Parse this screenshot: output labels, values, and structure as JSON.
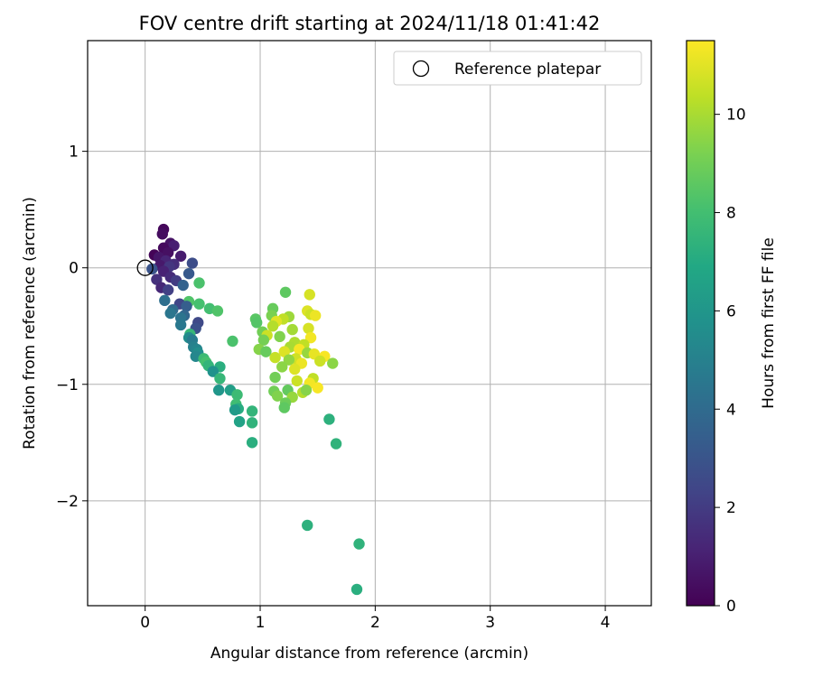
{
  "chart_data": {
    "type": "scatter",
    "title": "FOV centre drift starting at 2024/11/18 01:41:42",
    "xlabel": "Angular distance from reference (arcmin)",
    "ylabel": "Rotation from reference (arcmin)",
    "xlim": [
      -0.5,
      4.4
    ],
    "ylim": [
      -2.9,
      1.95
    ],
    "xticks": [
      0,
      1,
      2,
      3,
      4
    ],
    "xtick_labels": [
      "0",
      "1",
      "2",
      "3",
      "4"
    ],
    "yticks": [
      1,
      0,
      -1,
      -2
    ],
    "ytick_labels": [
      "1",
      "0",
      "−1",
      "−2"
    ],
    "grid": true,
    "legend": {
      "position": "top-right",
      "entries": [
        "Reference platepar"
      ]
    },
    "reference_point": {
      "x": 0,
      "y": 0,
      "label": "Reference platepar"
    },
    "colorbar": {
      "label": "Hours from first FF file",
      "colormap": "viridis",
      "range": [
        0,
        11.5
      ],
      "ticks": [
        0,
        2,
        4,
        6,
        8,
        10
      ],
      "tick_labels": [
        "0",
        "2",
        "4",
        "6",
        "8",
        "10"
      ]
    },
    "points": [
      {
        "x": 0.16,
        "y": 0.33,
        "t": 0.2
      },
      {
        "x": 0.15,
        "y": 0.29,
        "t": 0.4
      },
      {
        "x": 0.22,
        "y": 0.21,
        "t": 0.6
      },
      {
        "x": 0.25,
        "y": 0.19,
        "t": 1.0
      },
      {
        "x": 0.16,
        "y": 0.17,
        "t": 0.3
      },
      {
        "x": 0.2,
        "y": 0.13,
        "t": 0.5
      },
      {
        "x": 0.08,
        "y": 0.11,
        "t": 0.1
      },
      {
        "x": 0.31,
        "y": 0.1,
        "t": 0.9
      },
      {
        "x": 0.12,
        "y": 0.09,
        "t": 0.7
      },
      {
        "x": 0.18,
        "y": 0.06,
        "t": 1.2
      },
      {
        "x": 0.41,
        "y": 0.04,
        "t": 2.7
      },
      {
        "x": 0.25,
        "y": 0.03,
        "t": 1.5
      },
      {
        "x": 0.13,
        "y": 0.02,
        "t": 0.8
      },
      {
        "x": 0.21,
        "y": 0.01,
        "t": 1.8
      },
      {
        "x": 0.06,
        "y": -0.01,
        "t": 3.0
      },
      {
        "x": 0.16,
        "y": -0.03,
        "t": 1.1
      },
      {
        "x": 0.38,
        "y": -0.05,
        "t": 3.2
      },
      {
        "x": 0.22,
        "y": -0.08,
        "t": 1.4
      },
      {
        "x": 0.1,
        "y": -0.1,
        "t": 1.6
      },
      {
        "x": 0.27,
        "y": -0.11,
        "t": 2.0
      },
      {
        "x": 0.47,
        "y": -0.13,
        "t": 8.2
      },
      {
        "x": 0.33,
        "y": -0.15,
        "t": 3.6
      },
      {
        "x": 0.14,
        "y": -0.17,
        "t": 1.3
      },
      {
        "x": 0.2,
        "y": -0.19,
        "t": 2.2
      },
      {
        "x": 0.17,
        "y": -0.28,
        "t": 4.2
      },
      {
        "x": 0.38,
        "y": -0.29,
        "t": 8.3
      },
      {
        "x": 0.47,
        "y": -0.31,
        "t": 8.1
      },
      {
        "x": 0.3,
        "y": -0.31,
        "t": 2.4
      },
      {
        "x": 0.36,
        "y": -0.33,
        "t": 3.4
      },
      {
        "x": 0.56,
        "y": -0.35,
        "t": 8.0
      },
      {
        "x": 0.24,
        "y": -0.36,
        "t": 4.0
      },
      {
        "x": 0.63,
        "y": -0.37,
        "t": 8.3
      },
      {
        "x": 0.22,
        "y": -0.39,
        "t": 4.5
      },
      {
        "x": 0.34,
        "y": -0.41,
        "t": 3.8
      },
      {
        "x": 0.31,
        "y": -0.43,
        "t": 4.4
      },
      {
        "x": 0.46,
        "y": -0.47,
        "t": 2.5
      },
      {
        "x": 0.31,
        "y": -0.49,
        "t": 4.6
      },
      {
        "x": 0.44,
        "y": -0.52,
        "t": 2.8
      },
      {
        "x": 0.39,
        "y": -0.57,
        "t": 7.6
      },
      {
        "x": 0.38,
        "y": -0.6,
        "t": 5.5
      },
      {
        "x": 0.41,
        "y": -0.62,
        "t": 4.8
      },
      {
        "x": 0.76,
        "y": -0.63,
        "t": 8.2
      },
      {
        "x": 0.42,
        "y": -0.68,
        "t": 5.0
      },
      {
        "x": 0.45,
        "y": -0.7,
        "t": 5.2
      },
      {
        "x": 0.46,
        "y": -0.73,
        "t": 5.6
      },
      {
        "x": 0.44,
        "y": -0.76,
        "t": 5.3
      },
      {
        "x": 0.51,
        "y": -0.78,
        "t": 7.8
      },
      {
        "x": 0.53,
        "y": -0.81,
        "t": 8.1
      },
      {
        "x": 0.55,
        "y": -0.84,
        "t": 7.5
      },
      {
        "x": 0.65,
        "y": -0.85,
        "t": 7.2
      },
      {
        "x": 0.59,
        "y": -0.89,
        "t": 5.8
      },
      {
        "x": 0.65,
        "y": -0.95,
        "t": 7.6
      },
      {
        "x": 0.64,
        "y": -1.05,
        "t": 6.0
      },
      {
        "x": 0.74,
        "y": -1.05,
        "t": 6.4
      },
      {
        "x": 0.8,
        "y": -1.09,
        "t": 7.8
      },
      {
        "x": 0.79,
        "y": -1.17,
        "t": 7.9
      },
      {
        "x": 0.81,
        "y": -1.21,
        "t": 7.1
      },
      {
        "x": 0.78,
        "y": -1.22,
        "t": 6.2
      },
      {
        "x": 0.93,
        "y": -1.23,
        "t": 7.5
      },
      {
        "x": 0.82,
        "y": -1.32,
        "t": 6.6
      },
      {
        "x": 0.93,
        "y": -1.33,
        "t": 7.4
      },
      {
        "x": 0.93,
        "y": -1.5,
        "t": 7.2
      },
      {
        "x": 1.6,
        "y": -1.3,
        "t": 7.3
      },
      {
        "x": 1.66,
        "y": -1.51,
        "t": 7.4
      },
      {
        "x": 1.41,
        "y": -2.21,
        "t": 7.3
      },
      {
        "x": 1.86,
        "y": -2.37,
        "t": 7.4
      },
      {
        "x": 1.84,
        "y": -2.76,
        "t": 7.2
      },
      {
        "x": 1.22,
        "y": -0.21,
        "t": 8.6
      },
      {
        "x": 1.43,
        "y": -0.23,
        "t": 10.8
      },
      {
        "x": 1.11,
        "y": -0.35,
        "t": 8.8
      },
      {
        "x": 1.41,
        "y": -0.37,
        "t": 10.9
      },
      {
        "x": 1.44,
        "y": -0.4,
        "t": 10.6
      },
      {
        "x": 1.48,
        "y": -0.41,
        "t": 11.2
      },
      {
        "x": 1.1,
        "y": -0.41,
        "t": 9.2
      },
      {
        "x": 1.25,
        "y": -0.42,
        "t": 9.8
      },
      {
        "x": 0.96,
        "y": -0.44,
        "t": 8.5
      },
      {
        "x": 1.2,
        "y": -0.44,
        "t": 10.4
      },
      {
        "x": 1.14,
        "y": -0.46,
        "t": 11.0
      },
      {
        "x": 0.97,
        "y": -0.47,
        "t": 8.4
      },
      {
        "x": 1.11,
        "y": -0.5,
        "t": 10.2
      },
      {
        "x": 1.42,
        "y": -0.52,
        "t": 10.8
      },
      {
        "x": 1.28,
        "y": -0.53,
        "t": 9.9
      },
      {
        "x": 1.02,
        "y": -0.55,
        "t": 9.0
      },
      {
        "x": 1.06,
        "y": -0.58,
        "t": 10.6
      },
      {
        "x": 1.17,
        "y": -0.59,
        "t": 9.3
      },
      {
        "x": 1.44,
        "y": -0.6,
        "t": 11.3
      },
      {
        "x": 1.03,
        "y": -0.62,
        "t": 9.1
      },
      {
        "x": 1.3,
        "y": -0.64,
        "t": 10.1
      },
      {
        "x": 1.38,
        "y": -0.66,
        "t": 10.4
      },
      {
        "x": 1.26,
        "y": -0.68,
        "t": 10.0
      },
      {
        "x": 1.34,
        "y": -0.7,
        "t": 11.4
      },
      {
        "x": 0.99,
        "y": -0.7,
        "t": 9.4
      },
      {
        "x": 1.21,
        "y": -0.72,
        "t": 10.9
      },
      {
        "x": 1.05,
        "y": -0.72,
        "t": 8.8
      },
      {
        "x": 1.41,
        "y": -0.73,
        "t": 9.7
      },
      {
        "x": 1.47,
        "y": -0.74,
        "t": 11.1
      },
      {
        "x": 1.56,
        "y": -0.76,
        "t": 11.4
      },
      {
        "x": 1.13,
        "y": -0.77,
        "t": 10.5
      },
      {
        "x": 1.31,
        "y": -0.78,
        "t": 10.7
      },
      {
        "x": 1.25,
        "y": -0.79,
        "t": 9.6
      },
      {
        "x": 1.52,
        "y": -0.8,
        "t": 10.6
      },
      {
        "x": 1.63,
        "y": -0.82,
        "t": 9.5
      },
      {
        "x": 1.36,
        "y": -0.82,
        "t": 11.2
      },
      {
        "x": 1.19,
        "y": -0.85,
        "t": 9.5
      },
      {
        "x": 1.3,
        "y": -0.87,
        "t": 10.9
      },
      {
        "x": 1.13,
        "y": -0.94,
        "t": 9.0
      },
      {
        "x": 1.46,
        "y": -0.95,
        "t": 10.4
      },
      {
        "x": 1.32,
        "y": -0.97,
        "t": 10.6
      },
      {
        "x": 1.43,
        "y": -0.99,
        "t": 11.3
      },
      {
        "x": 1.5,
        "y": -1.03,
        "t": 11.4
      },
      {
        "x": 1.24,
        "y": -1.05,
        "t": 8.7
      },
      {
        "x": 1.12,
        "y": -1.06,
        "t": 9.0
      },
      {
        "x": 1.37,
        "y": -1.07,
        "t": 10.2
      },
      {
        "x": 1.15,
        "y": -1.1,
        "t": 9.3
      },
      {
        "x": 1.28,
        "y": -1.11,
        "t": 9.7
      },
      {
        "x": 1.22,
        "y": -1.16,
        "t": 8.9
      },
      {
        "x": 1.21,
        "y": -1.2,
        "t": 8.6
      },
      {
        "x": 1.4,
        "y": -1.05,
        "t": 9.4
      }
    ]
  }
}
